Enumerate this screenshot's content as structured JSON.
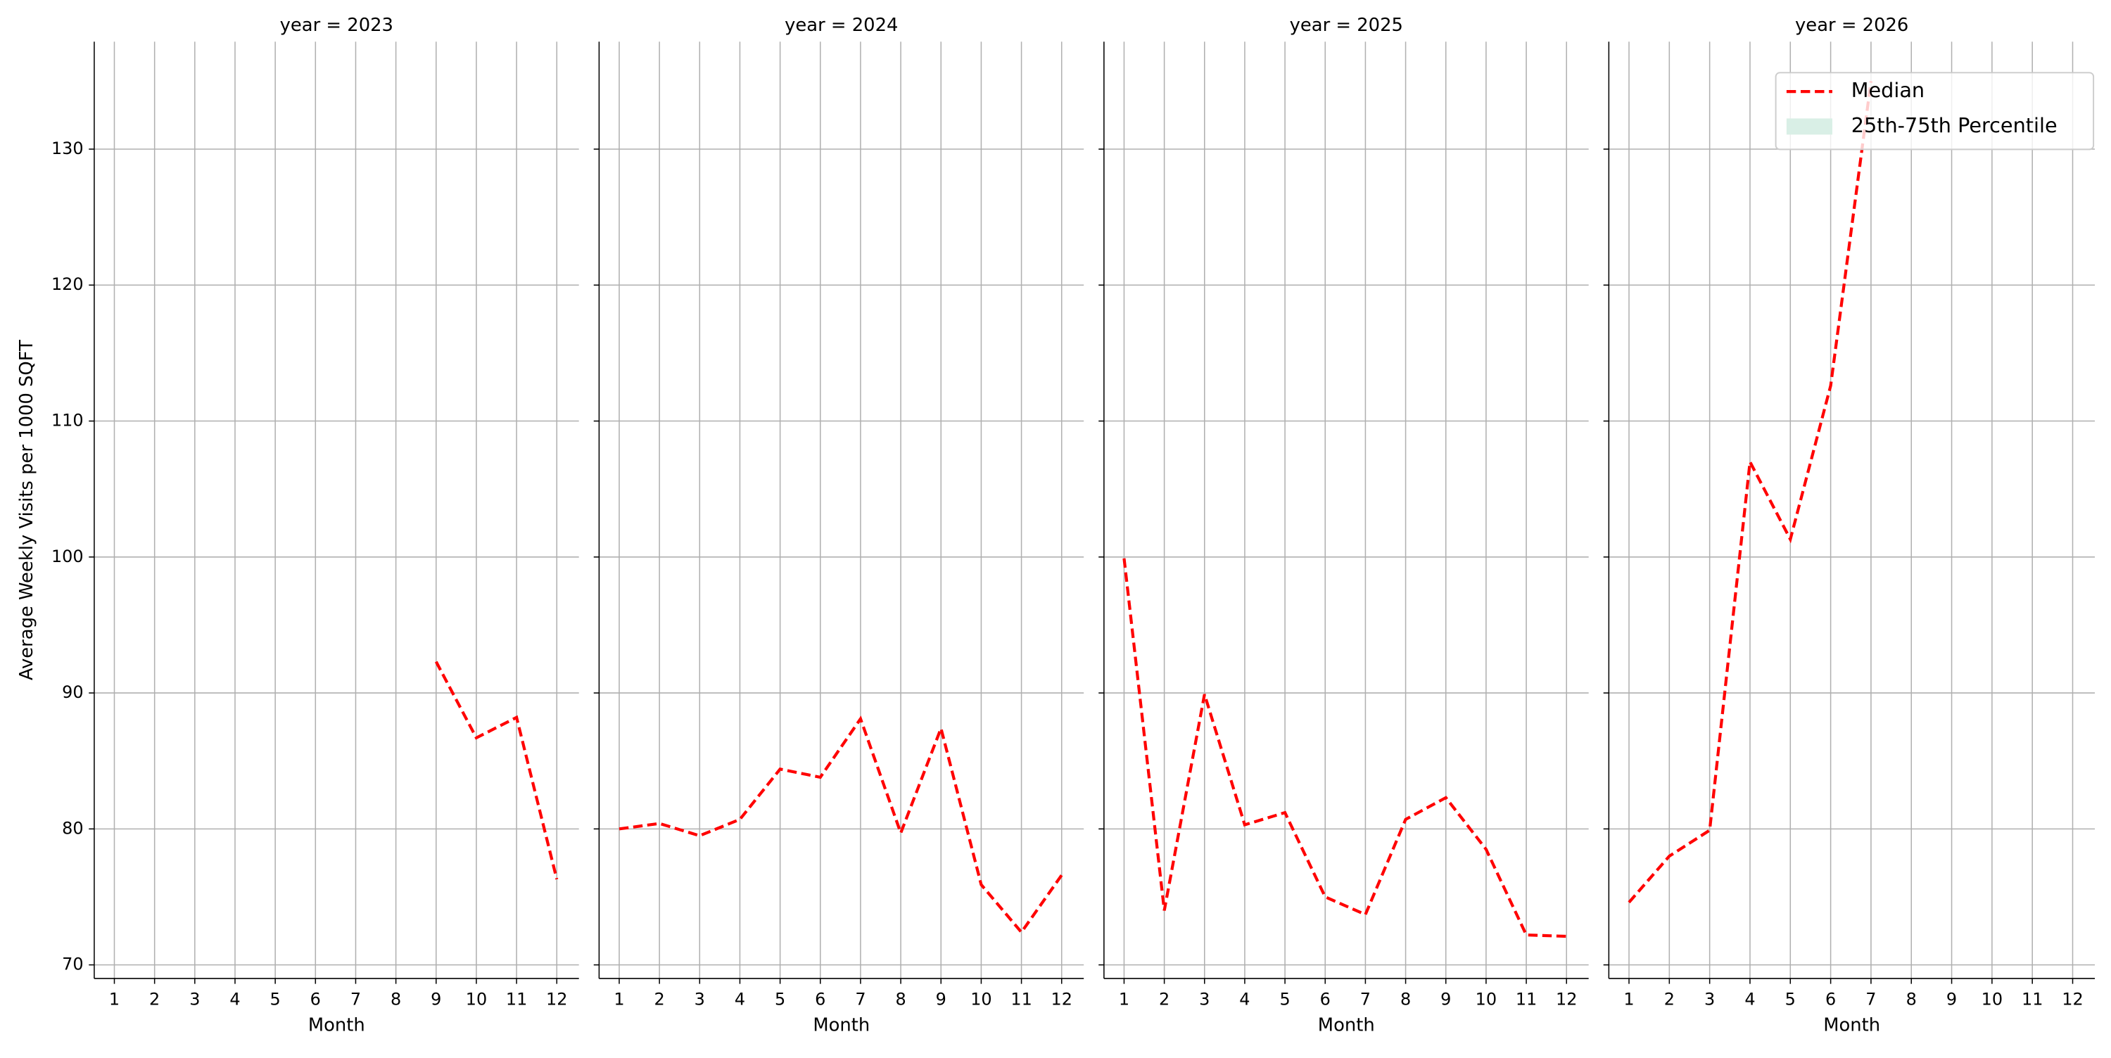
{
  "chart_data": [
    {
      "type": "line",
      "title": "year = 2023",
      "xlabel": "Month",
      "ylabel": "Average Weekly Visits per 1000 SQFT",
      "x": [
        1,
        2,
        3,
        4,
        5,
        6,
        7,
        8,
        9,
        10,
        11,
        12
      ],
      "xlim": [
        0.5,
        12.55
      ],
      "xticks": [
        1,
        2,
        3,
        4,
        5,
        6,
        7,
        8,
        9,
        10,
        11,
        12
      ],
      "ylim": [
        69,
        137.9
      ],
      "yticks": [
        70,
        80,
        90,
        100,
        110,
        120,
        130
      ],
      "grid": true,
      "series": [
        {
          "name": "Median",
          "color": "#ff0000",
          "values": [
            null,
            null,
            null,
            null,
            null,
            null,
            null,
            null,
            92.3,
            86.7,
            88.2,
            76.3
          ]
        }
      ]
    },
    {
      "type": "line",
      "title": "year = 2024",
      "xlabel": "Month",
      "x": [
        1,
        2,
        3,
        4,
        5,
        6,
        7,
        8,
        9,
        10,
        11,
        12
      ],
      "xlim": [
        0.5,
        12.55
      ],
      "xticks": [
        1,
        2,
        3,
        4,
        5,
        6,
        7,
        8,
        9,
        10,
        11,
        12
      ],
      "ylim": [
        69,
        137.9
      ],
      "yticks": [
        70,
        80,
        90,
        100,
        110,
        120,
        130
      ],
      "grid": true,
      "series": [
        {
          "name": "Median",
          "color": "#ff0000",
          "values": [
            80.0,
            80.4,
            79.5,
            80.7,
            84.4,
            83.8,
            88.1,
            79.7,
            87.4,
            75.9,
            72.4,
            76.6
          ]
        }
      ]
    },
    {
      "type": "line",
      "title": "year = 2025",
      "xlabel": "Month",
      "x": [
        1,
        2,
        3,
        4,
        5,
        6,
        7,
        8,
        9,
        10,
        11,
        12
      ],
      "xlim": [
        0.5,
        12.55
      ],
      "xticks": [
        1,
        2,
        3,
        4,
        5,
        6,
        7,
        8,
        9,
        10,
        11,
        12
      ],
      "ylim": [
        69,
        137.9
      ],
      "yticks": [
        70,
        80,
        90,
        100,
        110,
        120,
        130
      ],
      "grid": true,
      "series": [
        {
          "name": "Median",
          "color": "#ff0000",
          "values": [
            99.9,
            74.0,
            89.9,
            80.3,
            81.2,
            75.0,
            73.7,
            80.7,
            82.3,
            78.5,
            72.2,
            72.1
          ]
        }
      ]
    },
    {
      "type": "line",
      "title": "year = 2026",
      "xlabel": "Month",
      "x": [
        1,
        2,
        3,
        4,
        5,
        6,
        7,
        8,
        9,
        10,
        11,
        12
      ],
      "xlim": [
        0.5,
        12.55
      ],
      "xticks": [
        1,
        2,
        3,
        4,
        5,
        6,
        7,
        8,
        9,
        10,
        11,
        12
      ],
      "ylim": [
        69,
        137.9
      ],
      "yticks": [
        70,
        80,
        90,
        100,
        110,
        120,
        130
      ],
      "grid": true,
      "legend": "upper right",
      "series": [
        {
          "name": "Median",
          "color": "#ff0000",
          "values": [
            74.6,
            78.0,
            79.9,
            107.0,
            101.3,
            112.6,
            135.0,
            null,
            null,
            null,
            null,
            null
          ]
        },
        {
          "name": "25th-75th Percentile",
          "color": "#d9efe6"
        }
      ]
    }
  ]
}
